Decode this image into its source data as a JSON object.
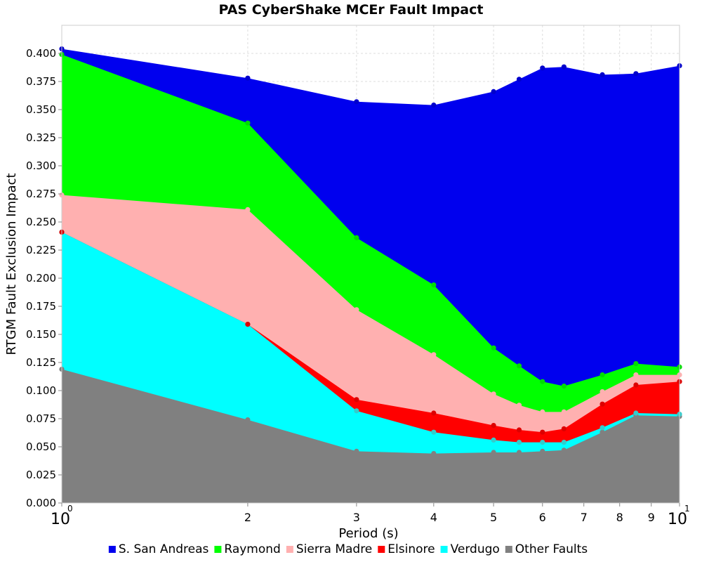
{
  "chart_data": {
    "type": "area",
    "stacked": true,
    "title": "PAS CyberShake MCEr Fault Impact",
    "xlabel": "Period (s)",
    "ylabel": "RTGM Fault Exclusion Impact",
    "x_scale": "log",
    "xlim": [
      1,
      10
    ],
    "ylim": [
      0,
      0.425
    ],
    "grid": true,
    "legend_position": "bottom",
    "x": [
      1,
      2,
      3,
      4,
      5,
      5.5,
      6,
      6.5,
      7.5,
      8.5,
      10
    ],
    "y_ticks": [
      "0.000",
      "0.025",
      "0.050",
      "0.075",
      "0.100",
      "0.125",
      "0.150",
      "0.175",
      "0.200",
      "0.225",
      "0.250",
      "0.275",
      "0.300",
      "0.325",
      "0.350",
      "0.375",
      "0.400"
    ],
    "x_ticks": [
      {
        "value": 1,
        "base": "10",
        "exponent": "0"
      },
      {
        "value": 2,
        "label": "2"
      },
      {
        "value": 3,
        "label": "3"
      },
      {
        "value": 4,
        "label": "4"
      },
      {
        "value": 5,
        "label": "5"
      },
      {
        "value": 6,
        "label": "6"
      },
      {
        "value": 7,
        "label": "7"
      },
      {
        "value": 8,
        "label": "8"
      },
      {
        "value": 9,
        "label": "9"
      },
      {
        "value": 10,
        "base": "10",
        "exponent": "1"
      }
    ],
    "series": [
      {
        "name": "Other Faults",
        "color": "#808080",
        "marker_color": "#808080",
        "cumulative": [
          0.119,
          0.074,
          0.046,
          0.044,
          0.045,
          0.045,
          0.046,
          0.047,
          0.063,
          0.078,
          0.077
        ]
      },
      {
        "name": "Verdugo",
        "color": "#00ffff",
        "marker_color": "#33cccc",
        "cumulative": [
          0.241,
          0.159,
          0.082,
          0.063,
          0.056,
          0.054,
          0.054,
          0.054,
          0.067,
          0.08,
          0.079
        ]
      },
      {
        "name": "Elsinore",
        "color": "#ff0000",
        "marker_color": "#dd0000",
        "cumulative": [
          0.241,
          0.159,
          0.092,
          0.08,
          0.069,
          0.065,
          0.063,
          0.066,
          0.088,
          0.105,
          0.108
        ]
      },
      {
        "name": "Sierra Madre",
        "color": "#ffb0b0",
        "marker_color": "#ffb0b0",
        "cumulative": [
          0.274,
          0.261,
          0.172,
          0.132,
          0.097,
          0.087,
          0.081,
          0.081,
          0.099,
          0.114,
          0.114
        ]
      },
      {
        "name": "Raymond",
        "color": "#00ff00",
        "marker_color": "#00dd00",
        "cumulative": [
          0.399,
          0.338,
          0.236,
          0.194,
          0.138,
          0.122,
          0.108,
          0.104,
          0.114,
          0.124,
          0.121
        ]
      },
      {
        "name": "S. San Andreas",
        "color": "#0000ee",
        "marker_color": "#0000cc",
        "cumulative": [
          0.404,
          0.378,
          0.357,
          0.354,
          0.366,
          0.377,
          0.387,
          0.388,
          0.381,
          0.382,
          0.389
        ]
      }
    ],
    "legend_order": [
      "S. San Andreas",
      "Raymond",
      "Sierra Madre",
      "Elsinore",
      "Verdugo",
      "Other Faults"
    ]
  }
}
